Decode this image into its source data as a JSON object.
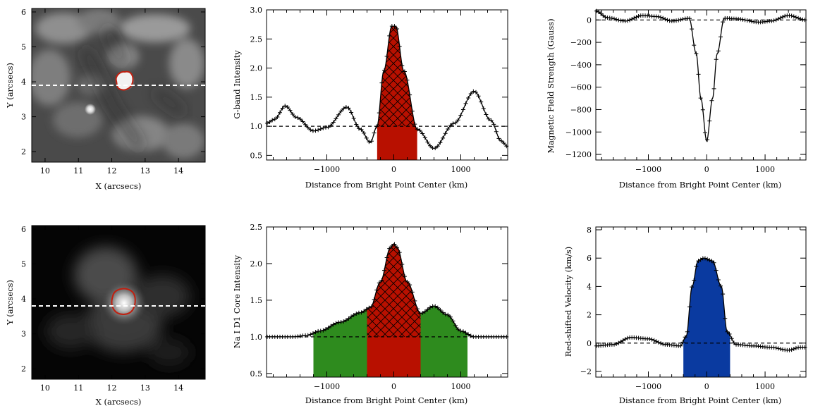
{
  "colors": {
    "hatch_red": "#b81000",
    "green": "#2e8b1e",
    "blue": "#0a3aa0",
    "contour": "#c02010",
    "line": "#000000"
  },
  "images": [
    {
      "xlabel": "X (arcsecs)",
      "ylabel": "Y (arcsecs)",
      "xticks": [
        "10",
        "11",
        "12",
        "13",
        "14"
      ],
      "yticks": [
        "2",
        "3",
        "4",
        "5",
        "6"
      ],
      "xlim": [
        9.6,
        14.8
      ],
      "ylim": [
        1.7,
        6.1
      ],
      "cut_y": 3.9,
      "style": "gband",
      "marker": [
        12.4,
        3.95
      ]
    },
    {
      "xlabel": "X (arcsecs)",
      "ylabel": "Y (arcsecs)",
      "xticks": [
        "10",
        "11",
        "12",
        "13",
        "14"
      ],
      "yticks": [
        "2",
        "3",
        "4",
        "5",
        "6"
      ],
      "xlim": [
        9.6,
        14.8
      ],
      "ylim": [
        1.7,
        6.1
      ],
      "cut_y": 3.8,
      "style": "nai",
      "marker": [
        12.4,
        3.75
      ]
    }
  ],
  "chart_data": [
    {
      "type": "line",
      "id": "gband",
      "xlabel": "Distance from Bright Point Center (km)",
      "ylabel": "G-band Intensity",
      "xlim": [
        -1900,
        1700
      ],
      "ylim": [
        0.42,
        3.0
      ],
      "xticks": [
        -1000,
        0,
        1000
      ],
      "xtick_labels": [
        "−1000",
        "0",
        "1000"
      ],
      "yticks": [
        0.5,
        1.0,
        1.5,
        2.0,
        2.5,
        3.0
      ],
      "ytick_labels": [
        "0.5",
        "1.0",
        "1.5",
        "2.0",
        "2.5",
        "3.0"
      ],
      "reference_line": 1.0,
      "knots": [
        [
          -1900,
          1.05
        ],
        [
          -1780,
          1.12
        ],
        [
          -1620,
          1.35
        ],
        [
          -1450,
          1.15
        ],
        [
          -1200,
          0.92
        ],
        [
          -1000,
          0.98
        ],
        [
          -700,
          1.33
        ],
        [
          -500,
          0.95
        ],
        [
          -350,
          0.72
        ],
        [
          -250,
          1.0
        ],
        [
          -150,
          1.95
        ],
        [
          -30,
          2.72
        ],
        [
          30,
          2.72
        ],
        [
          150,
          1.95
        ],
        [
          350,
          0.95
        ],
        [
          600,
          0.62
        ],
        [
          900,
          1.05
        ],
        [
          1200,
          1.6
        ],
        [
          1450,
          1.1
        ],
        [
          1600,
          0.75
        ],
        [
          1700,
          0.65
        ]
      ],
      "hatched_region": [
        -250,
        350
      ]
    },
    {
      "type": "line",
      "id": "bfield",
      "xlabel": "Distance from Bright Point Center (km)",
      "ylabel": "Magnetic Field Strength (Gauss)",
      "xlim": [
        -1900,
        1700
      ],
      "ylim": [
        -1250,
        90
      ],
      "xticks": [
        -1000,
        0,
        1000
      ],
      "xtick_labels": [
        "−1000",
        "0",
        "1000"
      ],
      "yticks": [
        0,
        -200,
        -400,
        -600,
        -800,
        -1000,
        -1200
      ],
      "ytick_labels": [
        "0",
        "−200",
        "−400",
        "−600",
        "−800",
        "−1000",
        "−1200"
      ],
      "reference_line": 0,
      "knots": [
        [
          -1900,
          80
        ],
        [
          -1700,
          20
        ],
        [
          -1400,
          -10
        ],
        [
          -1100,
          40
        ],
        [
          -850,
          30
        ],
        [
          -600,
          -10
        ],
        [
          -300,
          15
        ],
        [
          -180,
          -300
        ],
        [
          -100,
          -700
        ],
        [
          0,
          -1080
        ],
        [
          100,
          -700
        ],
        [
          180,
          -300
        ],
        [
          300,
          15
        ],
        [
          500,
          10
        ],
        [
          900,
          -20
        ],
        [
          1100,
          -10
        ],
        [
          1400,
          40
        ],
        [
          1700,
          0
        ]
      ],
      "hatched_region": null
    },
    {
      "type": "line",
      "id": "nai",
      "xlabel": "Distance from Bright Point Center (km)",
      "ylabel": "Na I D1 Core Intensity",
      "xlim": [
        -1900,
        1700
      ],
      "ylim": [
        0.45,
        2.5
      ],
      "xticks": [
        -1000,
        0,
        1000
      ],
      "xtick_labels": [
        "−1000",
        "0",
        "1000"
      ],
      "yticks": [
        0.5,
        1.0,
        1.5,
        2.0,
        2.5
      ],
      "ytick_labels": [
        "0.5",
        "1.0",
        "1.5",
        "2.0",
        "2.5"
      ],
      "reference_line": 1.0,
      "knots": [
        [
          -1900,
          1.0
        ],
        [
          -1500,
          1.0
        ],
        [
          -1300,
          1.02
        ],
        [
          -1100,
          1.08
        ],
        [
          -800,
          1.2
        ],
        [
          -500,
          1.33
        ],
        [
          -350,
          1.4
        ],
        [
          -200,
          1.75
        ],
        [
          -50,
          2.22
        ],
        [
          0,
          2.27
        ],
        [
          50,
          2.22
        ],
        [
          200,
          1.75
        ],
        [
          400,
          1.32
        ],
        [
          600,
          1.42
        ],
        [
          800,
          1.3
        ],
        [
          1000,
          1.08
        ],
        [
          1200,
          1.0
        ],
        [
          1700,
          1.0
        ]
      ],
      "hatched_region": [
        -400,
        400
      ],
      "shaded_region": [
        -1200,
        1100
      ]
    },
    {
      "type": "line",
      "id": "vel",
      "xlabel": "Distance from Bright Point Center (km)",
      "ylabel": "Red-shifted Velocity (km/s)",
      "xlim": [
        -1900,
        1700
      ],
      "ylim": [
        -2.4,
        8.2
      ],
      "xticks": [
        -1000,
        0,
        1000
      ],
      "xtick_labels": [
        "−1000",
        "0",
        "1000"
      ],
      "yticks": [
        -2,
        0,
        2,
        4,
        6,
        8
      ],
      "ytick_labels": [
        "−2",
        "0",
        "2",
        "4",
        "6",
        "8"
      ],
      "reference_line": 0,
      "knots": [
        [
          -1900,
          -0.2
        ],
        [
          -1600,
          -0.1
        ],
        [
          -1300,
          0.4
        ],
        [
          -1000,
          0.3
        ],
        [
          -700,
          -0.1
        ],
        [
          -450,
          -0.2
        ],
        [
          -350,
          0.5
        ],
        [
          -250,
          4.0
        ],
        [
          -150,
          5.8
        ],
        [
          -50,
          6.0
        ],
        [
          100,
          5.8
        ],
        [
          250,
          4.0
        ],
        [
          350,
          0.8
        ],
        [
          500,
          -0.1
        ],
        [
          800,
          -0.2
        ],
        [
          1100,
          -0.3
        ],
        [
          1400,
          -0.5
        ],
        [
          1600,
          -0.3
        ]
      ],
      "filled_region": [
        -400,
        400
      ]
    }
  ]
}
